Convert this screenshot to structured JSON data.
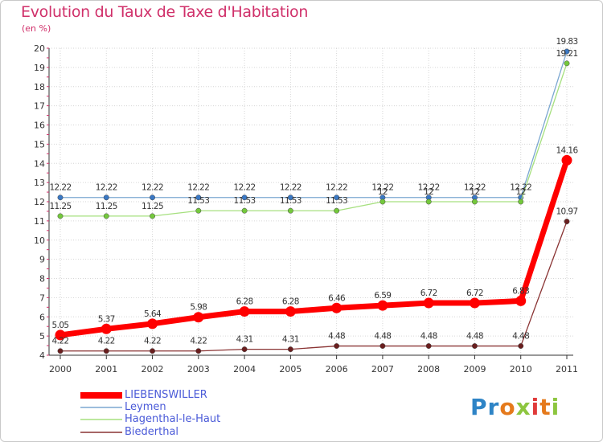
{
  "title": "Evolution du Taux de Taxe d'Habitation",
  "subtitle": "(en %)",
  "logo": {
    "text": "Proxiti",
    "letters": [
      "P",
      "r",
      "o",
      "x",
      "i",
      "t",
      "i"
    ],
    "colors": [
      "#2e84c6",
      "#2e84c6",
      "#e57a1c",
      "#8dc63f",
      "#e03a3a",
      "#e57a1c",
      "#8dc63f"
    ]
  },
  "chart_data": {
    "type": "line",
    "title": "Evolution du Taux de Taxe d'Habitation",
    "subtitle": "(en %)",
    "xlabel": "",
    "ylabel": "",
    "x": [
      "2000",
      "2001",
      "2002",
      "2003",
      "2004",
      "2005",
      "2006",
      "2007",
      "2008",
      "2009",
      "2010",
      "2011"
    ],
    "ylim": [
      4,
      20
    ],
    "yticks": [
      "4",
      "5",
      "6",
      "7",
      "8",
      "9",
      "10",
      "11",
      "12",
      "13",
      "14",
      "15",
      "16",
      "17",
      "18",
      "19",
      "20"
    ],
    "grid": true,
    "legend_position": "bottom-left",
    "series": [
      {
        "name": "Leymen",
        "color": "#7ba7d1",
        "point_color": "#3a78c4",
        "values": [
          12.22,
          12.22,
          12.22,
          12.22,
          12.22,
          12.22,
          12.22,
          12.22,
          12.22,
          12.22,
          12.22,
          19.83
        ],
        "labels": [
          "12.22",
          "12.22",
          "12.22",
          "12.22",
          "12.22",
          "12.22",
          "12.22",
          "12.22",
          "12.22",
          "12.22",
          "12.22",
          "19.83"
        ]
      },
      {
        "name": "Hagenthal-le-Haut",
        "color": "#a6e07f",
        "point_color": "#74c83c",
        "values": [
          11.25,
          11.25,
          11.25,
          11.53,
          11.53,
          11.53,
          11.53,
          12,
          12,
          12,
          12,
          19.21
        ],
        "labels": [
          "11.25",
          "11.25",
          "11.25",
          "11.53",
          "11.53",
          "11.53",
          "11.53",
          "12",
          "12",
          "12",
          "12",
          "19.21"
        ]
      },
      {
        "name": "Biederthal",
        "color": "#8a3434",
        "point_color": "#6a1e1e",
        "values": [
          4.22,
          4.22,
          4.22,
          4.22,
          4.31,
          4.31,
          4.48,
          4.48,
          4.48,
          4.48,
          4.48,
          10.97
        ],
        "labels": [
          "4.22",
          "4.22",
          "4.22",
          "4.22",
          "4.31",
          "4.31",
          "4.48",
          "4.48",
          "4.48",
          "4.48",
          "4.48",
          "10.97"
        ]
      },
      {
        "name": "LIEBENSWILLER",
        "color": "#ff0000",
        "point_color": "#ff0000",
        "values": [
          5.05,
          5.37,
          5.64,
          5.98,
          6.28,
          6.28,
          6.46,
          6.59,
          6.72,
          6.72,
          6.83,
          14.16
        ],
        "labels": [
          "5.05",
          "5.37",
          "5.64",
          "5.98",
          "6.28",
          "6.28",
          "6.46",
          "6.59",
          "6.72",
          "6.72",
          "6.83",
          "14.16"
        ]
      }
    ],
    "legend": [
      "LIEBENSWILLER",
      "Leymen",
      "Hagenthal-le-Haut",
      "Biederthal"
    ]
  }
}
